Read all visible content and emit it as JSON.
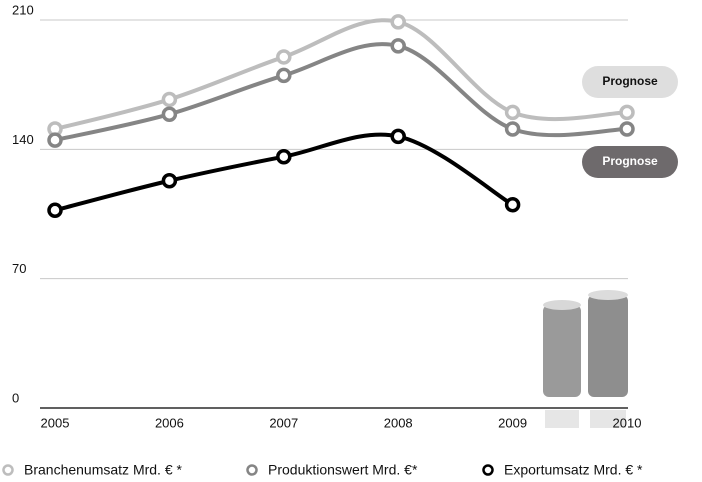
{
  "chart_data": {
    "type": "line",
    "categories": [
      "2005",
      "2006",
      "2007",
      "2008",
      "2009",
      "2010"
    ],
    "series": [
      {
        "name": "Branchenumsatz Mrd. € *",
        "color": "#bdbdbd",
        "values": [
          151,
          167,
          190,
          209,
          160,
          160
        ]
      },
      {
        "name": "Produktionswert Mrd. €*",
        "color": "#858585",
        "values": [
          145,
          159,
          180,
          196,
          151,
          151
        ]
      },
      {
        "name": "Exportumsatz Mrd. € *",
        "color": "#000000",
        "values": [
          107,
          123,
          136,
          147,
          110,
          null
        ]
      }
    ],
    "ylim": [
      0,
      210
    ],
    "yticks": [
      0,
      70,
      140,
      210
    ],
    "grid": true,
    "annotations": [
      "Prognose",
      "Prognose"
    ]
  }
}
